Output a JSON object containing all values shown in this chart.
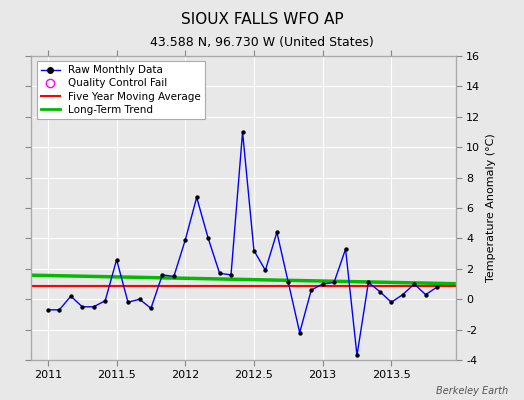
{
  "title": "SIOUX FALLS WFO AP",
  "subtitle": "43.588 N, 96.730 W (United States)",
  "credit": "Berkeley Earth",
  "ylabel_right": "Temperature Anomaly (°C)",
  "ylim": [
    -4,
    16
  ],
  "yticks": [
    -4,
    -2,
    0,
    2,
    4,
    6,
    8,
    10,
    12,
    14,
    16
  ],
  "xlim": [
    2010.88,
    2013.97
  ],
  "xticks": [
    2011,
    2011.5,
    2012,
    2012.5,
    2013,
    2013.5
  ],
  "xticklabels": [
    "2011",
    "2011.5",
    "2012",
    "2012.5",
    "2013",
    "2013.5"
  ],
  "raw_x": [
    2011.0,
    2011.083,
    2011.167,
    2011.25,
    2011.333,
    2011.417,
    2011.5,
    2011.583,
    2011.667,
    2011.75,
    2011.833,
    2011.917,
    2012.0,
    2012.083,
    2012.167,
    2012.25,
    2012.333,
    2012.417,
    2012.5,
    2012.583,
    2012.667,
    2012.75,
    2012.833,
    2012.917,
    2013.0,
    2013.083,
    2013.167,
    2013.25,
    2013.333,
    2013.417,
    2013.5,
    2013.583,
    2013.667,
    2013.75,
    2013.833
  ],
  "raw_y": [
    -0.7,
    -0.7,
    0.2,
    -0.5,
    -0.5,
    -0.1,
    2.6,
    -0.2,
    0.0,
    -0.6,
    1.6,
    1.5,
    3.9,
    6.7,
    4.0,
    1.7,
    1.6,
    11.0,
    3.2,
    1.9,
    4.4,
    1.1,
    -2.2,
    0.6,
    1.0,
    1.1,
    3.3,
    -3.7,
    1.1,
    0.5,
    -0.2,
    0.3,
    1.0,
    0.3,
    0.8
  ],
  "trend_x": [
    2010.88,
    2013.97
  ],
  "trend_y": [
    1.58,
    1.02
  ],
  "raw_color": "#0000ff",
  "ma_color": "#ff0000",
  "trend_color": "#00bb00",
  "marker_color": "#000000",
  "bg_color": "#e8e8e8",
  "grid_color": "#ffffff",
  "title_fontsize": 11,
  "subtitle_fontsize": 9,
  "axis_fontsize": 8,
  "tick_fontsize": 8,
  "legend_fontsize": 7.5
}
